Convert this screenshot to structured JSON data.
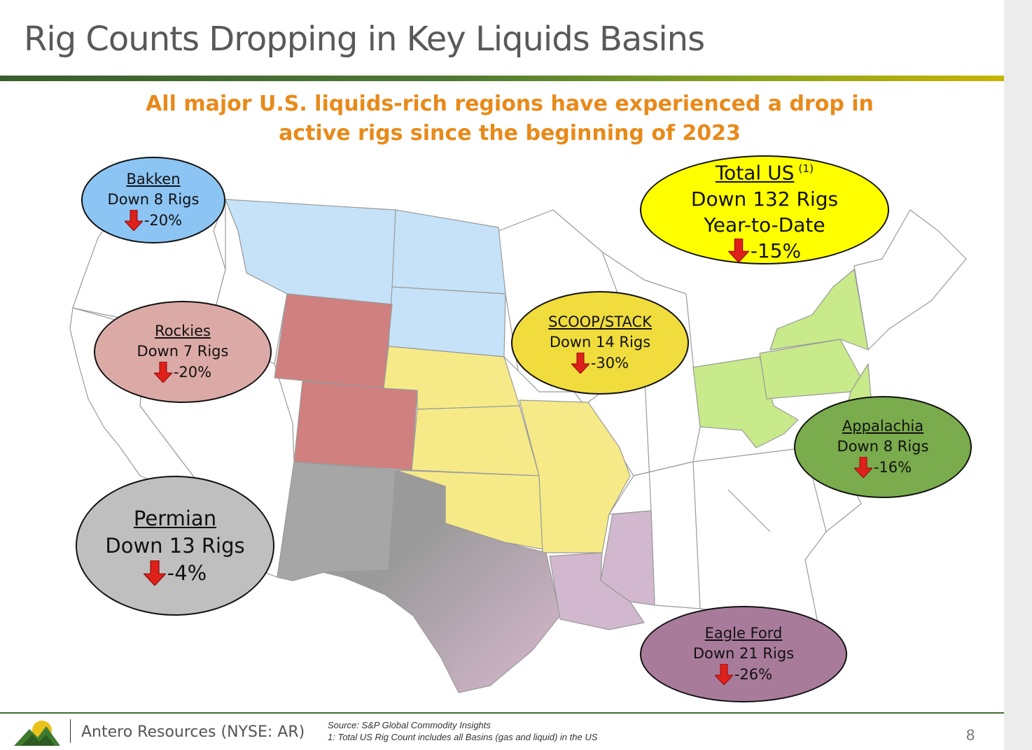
{
  "slide": {
    "title": "Rig Counts Dropping in Key Liquids Basins",
    "subtitle_line1": "All major U.S. liquids-rich regions have experienced a drop in",
    "subtitle_line2": "active rigs since the beginning of 2023",
    "page_number": "8"
  },
  "colors": {
    "accent_green": "#375f2e",
    "subtitle_orange": "#e88a1a",
    "decline_arrow": "#e0201b",
    "bakken": "#8cc4f4",
    "rockies": "#dcaaa6",
    "permian": "#bfbfbf",
    "scoop_stack": "#f0dc3c",
    "total_us": "#ffff00",
    "appalachia": "#7aab4c",
    "eagle_ford": "#a97b9b"
  },
  "basins": [
    {
      "key": "bakken",
      "name": "Bakken",
      "change": "Down 8 Rigs",
      "pct": "-20%"
    },
    {
      "key": "rockies",
      "name": "Rockies",
      "change": "Down 7 Rigs",
      "pct": "-20%"
    },
    {
      "key": "permian",
      "name": "Permian",
      "change": "Down 13 Rigs",
      "pct": "-4%"
    },
    {
      "key": "scoop_stack",
      "name": "SCOOP/STACK",
      "change": "Down 14 Rigs",
      "pct": "-30%"
    },
    {
      "key": "appalachia",
      "name": "Appalachia",
      "change": "Down 8 Rigs",
      "pct": "-16%"
    },
    {
      "key": "eagle_ford",
      "name": "Eagle Ford",
      "change": "Down 21 Rigs",
      "pct": "-26%"
    }
  ],
  "total_us": {
    "name": "Total US",
    "footnote_ref": "(1)",
    "change": "Down 132 Rigs",
    "period": "Year-to-Date",
    "pct": "-15%"
  },
  "footer": {
    "company": "Antero Resources (NYSE: AR)",
    "source": "Source: S&P Global Commodity Insights",
    "note": "1: Total US Rig Count includes all Basins (gas and liquid) in the US"
  }
}
